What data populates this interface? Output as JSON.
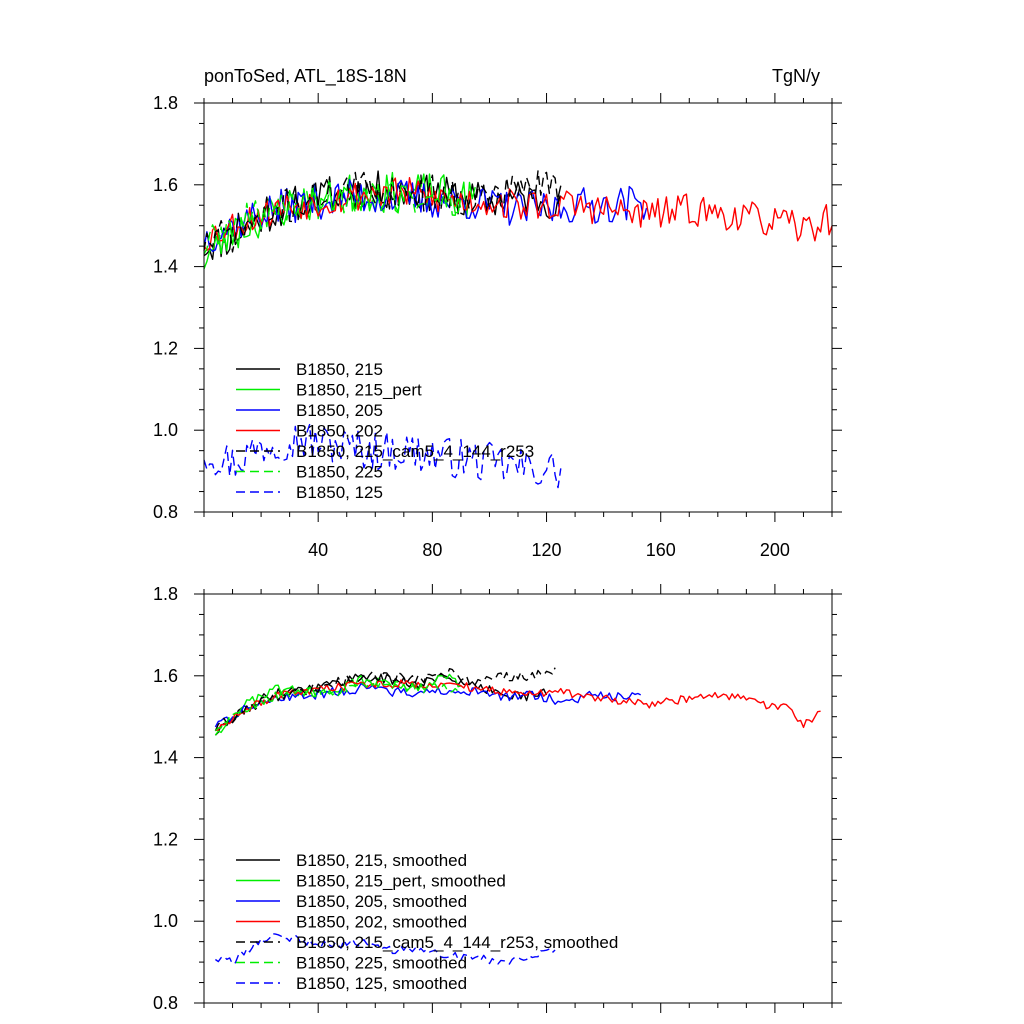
{
  "title_left": "ponToSed, ATL_18S-18N",
  "title_right": "TgN/y",
  "colors": {
    "black": "#000000",
    "green": "#00ee00",
    "blue": "#0000ff",
    "red": "#ff0000"
  },
  "chart_data": [
    {
      "type": "line",
      "panel": "raw",
      "xlim": [
        0,
        220
      ],
      "ylim": [
        0.8,
        1.8
      ],
      "xticks": [
        40,
        80,
        120,
        160,
        200
      ],
      "xtick_labels": [
        "40",
        "80",
        "120",
        "160",
        "200"
      ],
      "yticks": [
        0.8,
        1.0,
        1.2,
        1.4,
        1.6,
        1.8
      ],
      "ytick_labels": [
        "0.8",
        "1.0",
        "1.2",
        "1.4",
        "1.6",
        "1.8"
      ],
      "legend_position": "bottom-left",
      "series": [
        {
          "name": "B1850, 215",
          "color": "#000000",
          "dash": "solid",
          "x_start": 0,
          "x_end": 125,
          "anchors": [
            [
              0,
              1.45
            ],
            [
              10,
              1.47
            ],
            [
              20,
              1.52
            ],
            [
              30,
              1.55
            ],
            [
              40,
              1.57
            ],
            [
              50,
              1.58
            ],
            [
              60,
              1.59
            ],
            [
              70,
              1.58
            ],
            [
              80,
              1.58
            ],
            [
              90,
              1.57
            ],
            [
              100,
              1.56
            ],
            [
              110,
              1.57
            ],
            [
              125,
              1.56
            ]
          ],
          "amp": 0.045,
          "seed": 11
        },
        {
          "name": "B1850, 215_pert",
          "color": "#00ee00",
          "dash": "solid",
          "x_start": 0,
          "x_end": 95,
          "anchors": [
            [
              0,
              1.42
            ],
            [
              10,
              1.48
            ],
            [
              20,
              1.52
            ],
            [
              30,
              1.55
            ],
            [
              40,
              1.56
            ],
            [
              50,
              1.58
            ],
            [
              60,
              1.58
            ],
            [
              70,
              1.58
            ],
            [
              80,
              1.58
            ],
            [
              95,
              1.56
            ]
          ],
          "amp": 0.05,
          "seed": 23
        },
        {
          "name": "B1850, 205",
          "color": "#0000ff",
          "dash": "solid",
          "x_start": 0,
          "x_end": 155,
          "anchors": [
            [
              0,
              1.47
            ],
            [
              10,
              1.5
            ],
            [
              20,
              1.53
            ],
            [
              30,
              1.55
            ],
            [
              40,
              1.56
            ],
            [
              50,
              1.57
            ],
            [
              60,
              1.57
            ],
            [
              70,
              1.57
            ],
            [
              80,
              1.56
            ],
            [
              90,
              1.56
            ],
            [
              100,
              1.55
            ],
            [
              110,
              1.54
            ],
            [
              120,
              1.54
            ],
            [
              130,
              1.55
            ],
            [
              140,
              1.55
            ],
            [
              155,
              1.56
            ]
          ],
          "amp": 0.045,
          "seed": 37
        },
        {
          "name": "B1850, 202",
          "color": "#ff0000",
          "dash": "solid",
          "x_start": 0,
          "x_end": 220,
          "anchors": [
            [
              0,
              1.47
            ],
            [
              10,
              1.5
            ],
            [
              20,
              1.53
            ],
            [
              30,
              1.55
            ],
            [
              40,
              1.56
            ],
            [
              50,
              1.57
            ],
            [
              60,
              1.58
            ],
            [
              70,
              1.58
            ],
            [
              80,
              1.57
            ],
            [
              90,
              1.56
            ],
            [
              100,
              1.56
            ],
            [
              110,
              1.55
            ],
            [
              120,
              1.55
            ],
            [
              130,
              1.55
            ],
            [
              140,
              1.54
            ],
            [
              150,
              1.53
            ],
            [
              160,
              1.53
            ],
            [
              170,
              1.54
            ],
            [
              180,
              1.53
            ],
            [
              190,
              1.52
            ],
            [
              200,
              1.51
            ],
            [
              210,
              1.49
            ],
            [
              220,
              1.52
            ]
          ],
          "amp": 0.04,
          "seed": 53
        },
        {
          "name": "B1850, 215_cam5_4_144_r253",
          "color": "#000000",
          "dash": "dashed",
          "x_start": 0,
          "x_end": 125,
          "anchors": [
            [
              0,
              1.46
            ],
            [
              10,
              1.48
            ],
            [
              20,
              1.52
            ],
            [
              30,
              1.55
            ],
            [
              40,
              1.57
            ],
            [
              50,
              1.59
            ],
            [
              60,
              1.59
            ],
            [
              70,
              1.58
            ],
            [
              80,
              1.58
            ],
            [
              90,
              1.57
            ],
            [
              100,
              1.57
            ],
            [
              110,
              1.59
            ],
            [
              125,
              1.6
            ]
          ],
          "amp": 0.045,
          "seed": 71
        },
        {
          "name": "B1850, 225",
          "color": "#00ee00",
          "dash": "dashed",
          "x_start": 0,
          "x_end": 90,
          "anchors": [
            [
              0,
              1.45
            ],
            [
              10,
              1.5
            ],
            [
              20,
              1.53
            ],
            [
              30,
              1.55
            ],
            [
              40,
              1.56
            ],
            [
              50,
              1.57
            ],
            [
              60,
              1.57
            ],
            [
              70,
              1.57
            ],
            [
              80,
              1.56
            ],
            [
              90,
              1.55
            ]
          ],
          "amp": 0.04,
          "seed": 89
        },
        {
          "name": "B1850, 125",
          "color": "#0000ff",
          "dash": "dashed",
          "x_start": 0,
          "x_end": 125,
          "anchors": [
            [
              0,
              0.95
            ],
            [
              10,
              0.92
            ],
            [
              20,
              0.96
            ],
            [
              30,
              0.98
            ],
            [
              40,
              0.97
            ],
            [
              50,
              0.96
            ],
            [
              60,
              0.95
            ],
            [
              70,
              0.95
            ],
            [
              80,
              0.94
            ],
            [
              90,
              0.93
            ],
            [
              100,
              0.92
            ],
            [
              110,
              0.91
            ],
            [
              125,
              0.9
            ]
          ],
          "amp": 0.05,
          "seed": 97
        }
      ]
    },
    {
      "type": "line",
      "panel": "smoothed",
      "xlim": [
        0,
        220
      ],
      "ylim": [
        0.8,
        1.8
      ],
      "xticks": [
        40,
        80,
        120,
        160,
        200
      ],
      "xtick_labels": [],
      "yticks": [
        0.8,
        1.0,
        1.2,
        1.4,
        1.6,
        1.8
      ],
      "ytick_labels": [
        "0.8",
        "1.0",
        "1.2",
        "1.4",
        "1.6",
        "1.8"
      ],
      "legend_position": "bottom-left",
      "series": [
        {
          "name": "B1850, 215, smoothed",
          "color": "#000000",
          "dash": "solid",
          "x_start": 4,
          "x_end": 120,
          "anchors": [
            [
              4,
              1.46
            ],
            [
              15,
              1.52
            ],
            [
              25,
              1.56
            ],
            [
              35,
              1.57
            ],
            [
              45,
              1.58
            ],
            [
              55,
              1.6
            ],
            [
              65,
              1.59
            ],
            [
              75,
              1.58
            ],
            [
              85,
              1.6
            ],
            [
              95,
              1.57
            ],
            [
              105,
              1.56
            ],
            [
              112,
              1.55
            ],
            [
              120,
              1.56
            ]
          ],
          "amp": 0.012,
          "seed": 111
        },
        {
          "name": "B1850, 215_pert, smoothed",
          "color": "#00ee00",
          "dash": "solid",
          "x_start": 4,
          "x_end": 90,
          "anchors": [
            [
              4,
              1.46
            ],
            [
              15,
              1.53
            ],
            [
              25,
              1.57
            ],
            [
              35,
              1.56
            ],
            [
              45,
              1.56
            ],
            [
              55,
              1.59
            ],
            [
              65,
              1.58
            ],
            [
              75,
              1.57
            ],
            [
              85,
              1.6
            ],
            [
              90,
              1.57
            ]
          ],
          "amp": 0.012,
          "seed": 123
        },
        {
          "name": "B1850, 205, smoothed",
          "color": "#0000ff",
          "dash": "solid",
          "x_start": 4,
          "x_end": 153,
          "anchors": [
            [
              4,
              1.48
            ],
            [
              15,
              1.52
            ],
            [
              25,
              1.55
            ],
            [
              35,
              1.55
            ],
            [
              45,
              1.56
            ],
            [
              55,
              1.57
            ],
            [
              65,
              1.56
            ],
            [
              75,
              1.56
            ],
            [
              85,
              1.56
            ],
            [
              95,
              1.56
            ],
            [
              105,
              1.55
            ],
            [
              115,
              1.55
            ],
            [
              125,
              1.54
            ],
            [
              135,
              1.55
            ],
            [
              145,
              1.55
            ],
            [
              153,
              1.56
            ]
          ],
          "amp": 0.012,
          "seed": 137
        },
        {
          "name": "B1850, 202, smoothed",
          "color": "#ff0000",
          "dash": "solid",
          "x_start": 4,
          "x_end": 216,
          "anchors": [
            [
              4,
              1.47
            ],
            [
              15,
              1.52
            ],
            [
              25,
              1.55
            ],
            [
              35,
              1.56
            ],
            [
              45,
              1.57
            ],
            [
              55,
              1.58
            ],
            [
              65,
              1.58
            ],
            [
              75,
              1.58
            ],
            [
              85,
              1.58
            ],
            [
              95,
              1.57
            ],
            [
              105,
              1.56
            ],
            [
              115,
              1.56
            ],
            [
              125,
              1.56
            ],
            [
              135,
              1.55
            ],
            [
              145,
              1.54
            ],
            [
              155,
              1.53
            ],
            [
              165,
              1.54
            ],
            [
              175,
              1.55
            ],
            [
              185,
              1.55
            ],
            [
              195,
              1.53
            ],
            [
              205,
              1.52
            ],
            [
              210,
              1.48
            ],
            [
              216,
              1.51
            ]
          ],
          "amp": 0.01,
          "seed": 153
        },
        {
          "name": "B1850, 215_cam5_4_144_r253, smoothed",
          "color": "#000000",
          "dash": "dashed",
          "x_start": 4,
          "x_end": 123,
          "anchors": [
            [
              4,
              1.47
            ],
            [
              15,
              1.52
            ],
            [
              25,
              1.55
            ],
            [
              35,
              1.56
            ],
            [
              45,
              1.58
            ],
            [
              55,
              1.6
            ],
            [
              65,
              1.6
            ],
            [
              75,
              1.59
            ],
            [
              85,
              1.61
            ],
            [
              95,
              1.58
            ],
            [
              105,
              1.6
            ],
            [
              115,
              1.6
            ],
            [
              123,
              1.61
            ]
          ],
          "amp": 0.012,
          "seed": 171
        },
        {
          "name": "B1850, 225, smoothed",
          "color": "#00ee00",
          "dash": "dashed",
          "x_start": 4,
          "x_end": 90,
          "anchors": [
            [
              4,
              1.47
            ],
            [
              15,
              1.52
            ],
            [
              25,
              1.55
            ],
            [
              35,
              1.56
            ],
            [
              45,
              1.56
            ],
            [
              55,
              1.58
            ],
            [
              65,
              1.58
            ],
            [
              75,
              1.57
            ],
            [
              85,
              1.57
            ],
            [
              90,
              1.56
            ]
          ],
          "amp": 0.012,
          "seed": 189
        },
        {
          "name": "B1850, 125, smoothed",
          "color": "#0000ff",
          "dash": "dashed",
          "x_start": 4,
          "x_end": 123,
          "anchors": [
            [
              4,
              0.91
            ],
            [
              10,
              0.9
            ],
            [
              15,
              0.93
            ],
            [
              25,
              0.97
            ],
            [
              35,
              0.95
            ],
            [
              45,
              0.94
            ],
            [
              55,
              0.95
            ],
            [
              65,
              0.93
            ],
            [
              75,
              0.93
            ],
            [
              85,
              0.92
            ],
            [
              95,
              0.91
            ],
            [
              105,
              0.9
            ],
            [
              115,
              0.92
            ],
            [
              123,
              0.93
            ]
          ],
          "amp": 0.01,
          "seed": 197
        }
      ]
    }
  ]
}
